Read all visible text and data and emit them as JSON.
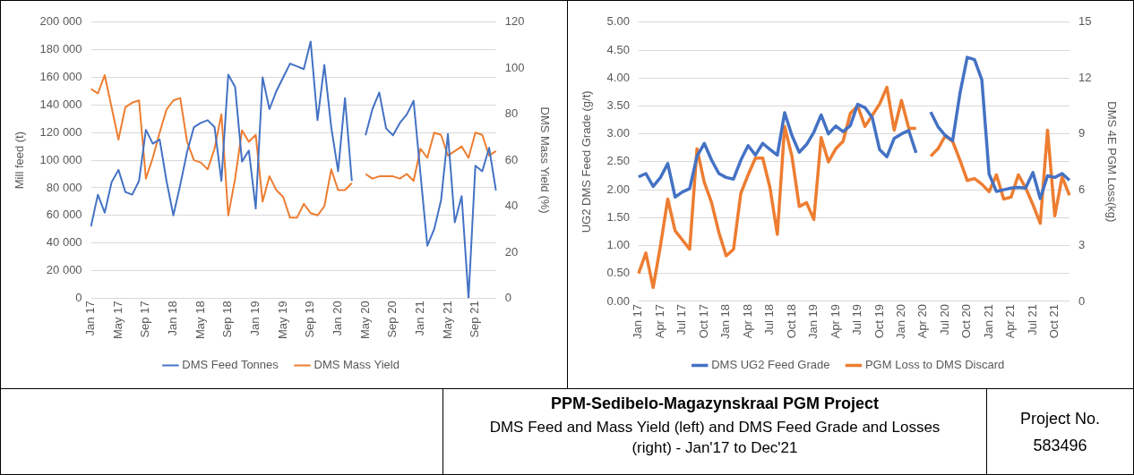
{
  "chart_data": [
    {
      "type": "line",
      "ylabel": "Mill feed (t)",
      "y2label": "DMS Mass Yield (%)",
      "categories": [
        "Jan 17",
        null,
        null,
        null,
        "May 17",
        null,
        null,
        null,
        "Sep 17",
        null,
        null,
        null,
        "Jan 18",
        null,
        null,
        null,
        "May 18",
        null,
        null,
        null,
        "Sep 18",
        null,
        null,
        null,
        "Jan 19",
        null,
        null,
        null,
        "May 19",
        null,
        null,
        null,
        "Sep 19",
        null,
        null,
        null,
        "Jan 20",
        null,
        null,
        null,
        "May 20",
        null,
        null,
        null,
        "Sep 20",
        null,
        null,
        null,
        "Jan 21",
        null,
        null,
        null,
        "May 21",
        null,
        null,
        null,
        "Sep 21",
        null,
        null,
        null
      ],
      "series": [
        {
          "name": "DMS Feed Tonnes",
          "color": "#4472c4",
          "values": [
            52000,
            75000,
            62000,
            84000,
            93000,
            77000,
            75000,
            85000,
            122000,
            112000,
            115000,
            85000,
            60000,
            82000,
            106000,
            124000,
            127000,
            129000,
            124000,
            85000,
            162000,
            153000,
            99000,
            107000,
            65000,
            160000,
            137000,
            150000,
            160000,
            170000,
            168000,
            166000,
            186000,
            129000,
            169000,
            124000,
            92000,
            145000,
            85000,
            null,
            118000,
            137000,
            149000,
            123000,
            118000,
            127000,
            133000,
            143000,
            90000,
            38000,
            50000,
            71000,
            119000,
            55000,
            74000,
            0,
            96000,
            92000,
            109000,
            78000
          ]
        },
        {
          "name": "DMS Mass Yield",
          "color": "#ed7d31",
          "axis": "y2",
          "values": [
            91,
            89,
            97,
            83,
            69,
            83,
            85,
            86,
            52,
            61,
            72,
            82,
            86,
            87,
            68,
            60,
            59,
            56,
            65,
            80,
            36,
            52,
            73,
            68,
            71,
            42,
            53,
            47,
            44,
            35,
            35,
            41,
            37,
            36,
            40,
            56,
            47,
            47,
            50,
            null,
            54,
            52,
            53,
            53,
            53,
            52,
            54,
            51,
            65,
            61,
            72,
            71,
            62,
            64,
            66,
            61,
            72,
            71,
            62,
            64
          ]
        }
      ],
      "ylim": [
        0,
        200000
      ],
      "yticks": [
        {
          "value": 0,
          "label": "0"
        },
        {
          "value": 20000,
          "label": "20 000"
        },
        {
          "value": 40000,
          "label": "40 000"
        },
        {
          "value": 60000,
          "label": "60 000"
        },
        {
          "value": 80000,
          "label": "80 000"
        },
        {
          "value": 100000,
          "label": "100 000"
        },
        {
          "value": 120000,
          "label": "120 000"
        },
        {
          "value": 140000,
          "label": "140 000"
        },
        {
          "value": 160000,
          "label": "160 000"
        },
        {
          "value": 180000,
          "label": "180 000"
        },
        {
          "value": 200000,
          "label": "200 000"
        }
      ],
      "y2lim": [
        0,
        120
      ],
      "y2ticks": [
        0,
        20,
        40,
        60,
        80,
        100,
        120
      ],
      "grid": "y",
      "legend": "bottom"
    },
    {
      "type": "line",
      "ylabel": "UG2 DMS Feed Grade (g/t)",
      "y2label": "DMS 4E PGM Loss(kg)",
      "categories": [
        "Jan 17",
        null,
        null,
        "Apr 17",
        null,
        null,
        "Jul 17",
        null,
        null,
        "Oct 17",
        null,
        null,
        "Jan 18",
        null,
        null,
        "Apr 18",
        null,
        null,
        "Jul 18",
        null,
        null,
        "Oct 18",
        null,
        null,
        "Jan 19",
        null,
        null,
        "Apr 19",
        null,
        null,
        "Jul 19",
        null,
        null,
        "Oct 19",
        null,
        null,
        "Jan 20",
        null,
        null,
        "Apr 20",
        null,
        null,
        "Jul 20",
        null,
        null,
        "Oct 20",
        null,
        null,
        "Jan 21",
        null,
        null,
        "Apr 21",
        null,
        null,
        "Jul 21",
        null,
        null,
        "Oct 21",
        null,
        null
      ],
      "series": [
        {
          "name": "DMS UG2 Feed Grade",
          "color": "#4472c4",
          "values": [
            2.23,
            2.29,
            2.06,
            2.22,
            2.47,
            1.87,
            1.96,
            2.02,
            2.6,
            2.83,
            2.53,
            2.29,
            2.22,
            2.19,
            2.53,
            2.79,
            2.62,
            2.83,
            2.72,
            2.62,
            3.38,
            2.97,
            2.67,
            2.81,
            3.03,
            3.34,
            3.0,
            3.14,
            3.04,
            3.15,
            3.53,
            3.47,
            3.29,
            2.72,
            2.59,
            2.92,
            3.0,
            3.06,
            2.66,
            null,
            3.39,
            3.13,
            2.97,
            2.88,
            3.72,
            4.37,
            4.33,
            3.97,
            2.28,
            1.97,
            2.0,
            2.03,
            2.04,
            2.03,
            2.31,
            1.84,
            2.25,
            2.22,
            2.29,
            2.17
          ]
        },
        {
          "name": "PGM Loss to DMS Discard",
          "color": "#ed7d31",
          "axis": "y2",
          "values": [
            1.5,
            2.6,
            0.75,
            3.0,
            5.5,
            3.8,
            3.3,
            2.8,
            8.2,
            6.4,
            5.3,
            3.7,
            2.45,
            2.8,
            5.8,
            6.8,
            7.7,
            7.7,
            6.1,
            3.6,
            9.4,
            7.8,
            5.1,
            5.3,
            4.4,
            8.8,
            7.5,
            8.2,
            8.6,
            10.1,
            10.5,
            9.4,
            10.0,
            10.6,
            11.5,
            9.2,
            10.8,
            9.3,
            9.3,
            null,
            7.8,
            8.2,
            8.9,
            8.6,
            7.6,
            6.5,
            6.6,
            6.3,
            5.9,
            6.8,
            5.5,
            5.6,
            6.8,
            6.1,
            5.2,
            4.2,
            9.2,
            4.6,
            6.7,
            5.7
          ]
        }
      ],
      "ylim": [
        0,
        5
      ],
      "yticks": [
        {
          "value": 0,
          "label": "0.00"
        },
        {
          "value": 0.5,
          "label": "0.50"
        },
        {
          "value": 1,
          "label": "1.00"
        },
        {
          "value": 1.5,
          "label": "1.50"
        },
        {
          "value": 2,
          "label": "2.00"
        },
        {
          "value": 2.5,
          "label": "2.50"
        },
        {
          "value": 3,
          "label": "3.00"
        },
        {
          "value": 3.5,
          "label": "3.50"
        },
        {
          "value": 4,
          "label": "4.00"
        },
        {
          "value": 4.5,
          "label": "4.50"
        },
        {
          "value": 5,
          "label": "5.00"
        }
      ],
      "y2lim": [
        0,
        15
      ],
      "y2ticks": [
        0,
        3,
        6,
        9,
        12,
        15
      ],
      "grid": "y",
      "legend": "bottom"
    },
    {
      "type": "other",
      "title": "PPM-Sedibelo-Magazynskraal PGM Project",
      "subtitle": "DMS Feed and Mass Yield (left) and DMS Feed Grade and Losses (right) - Jan'17 to Dec'21",
      "annotations": [
        "Project No.",
        "583496"
      ]
    }
  ]
}
